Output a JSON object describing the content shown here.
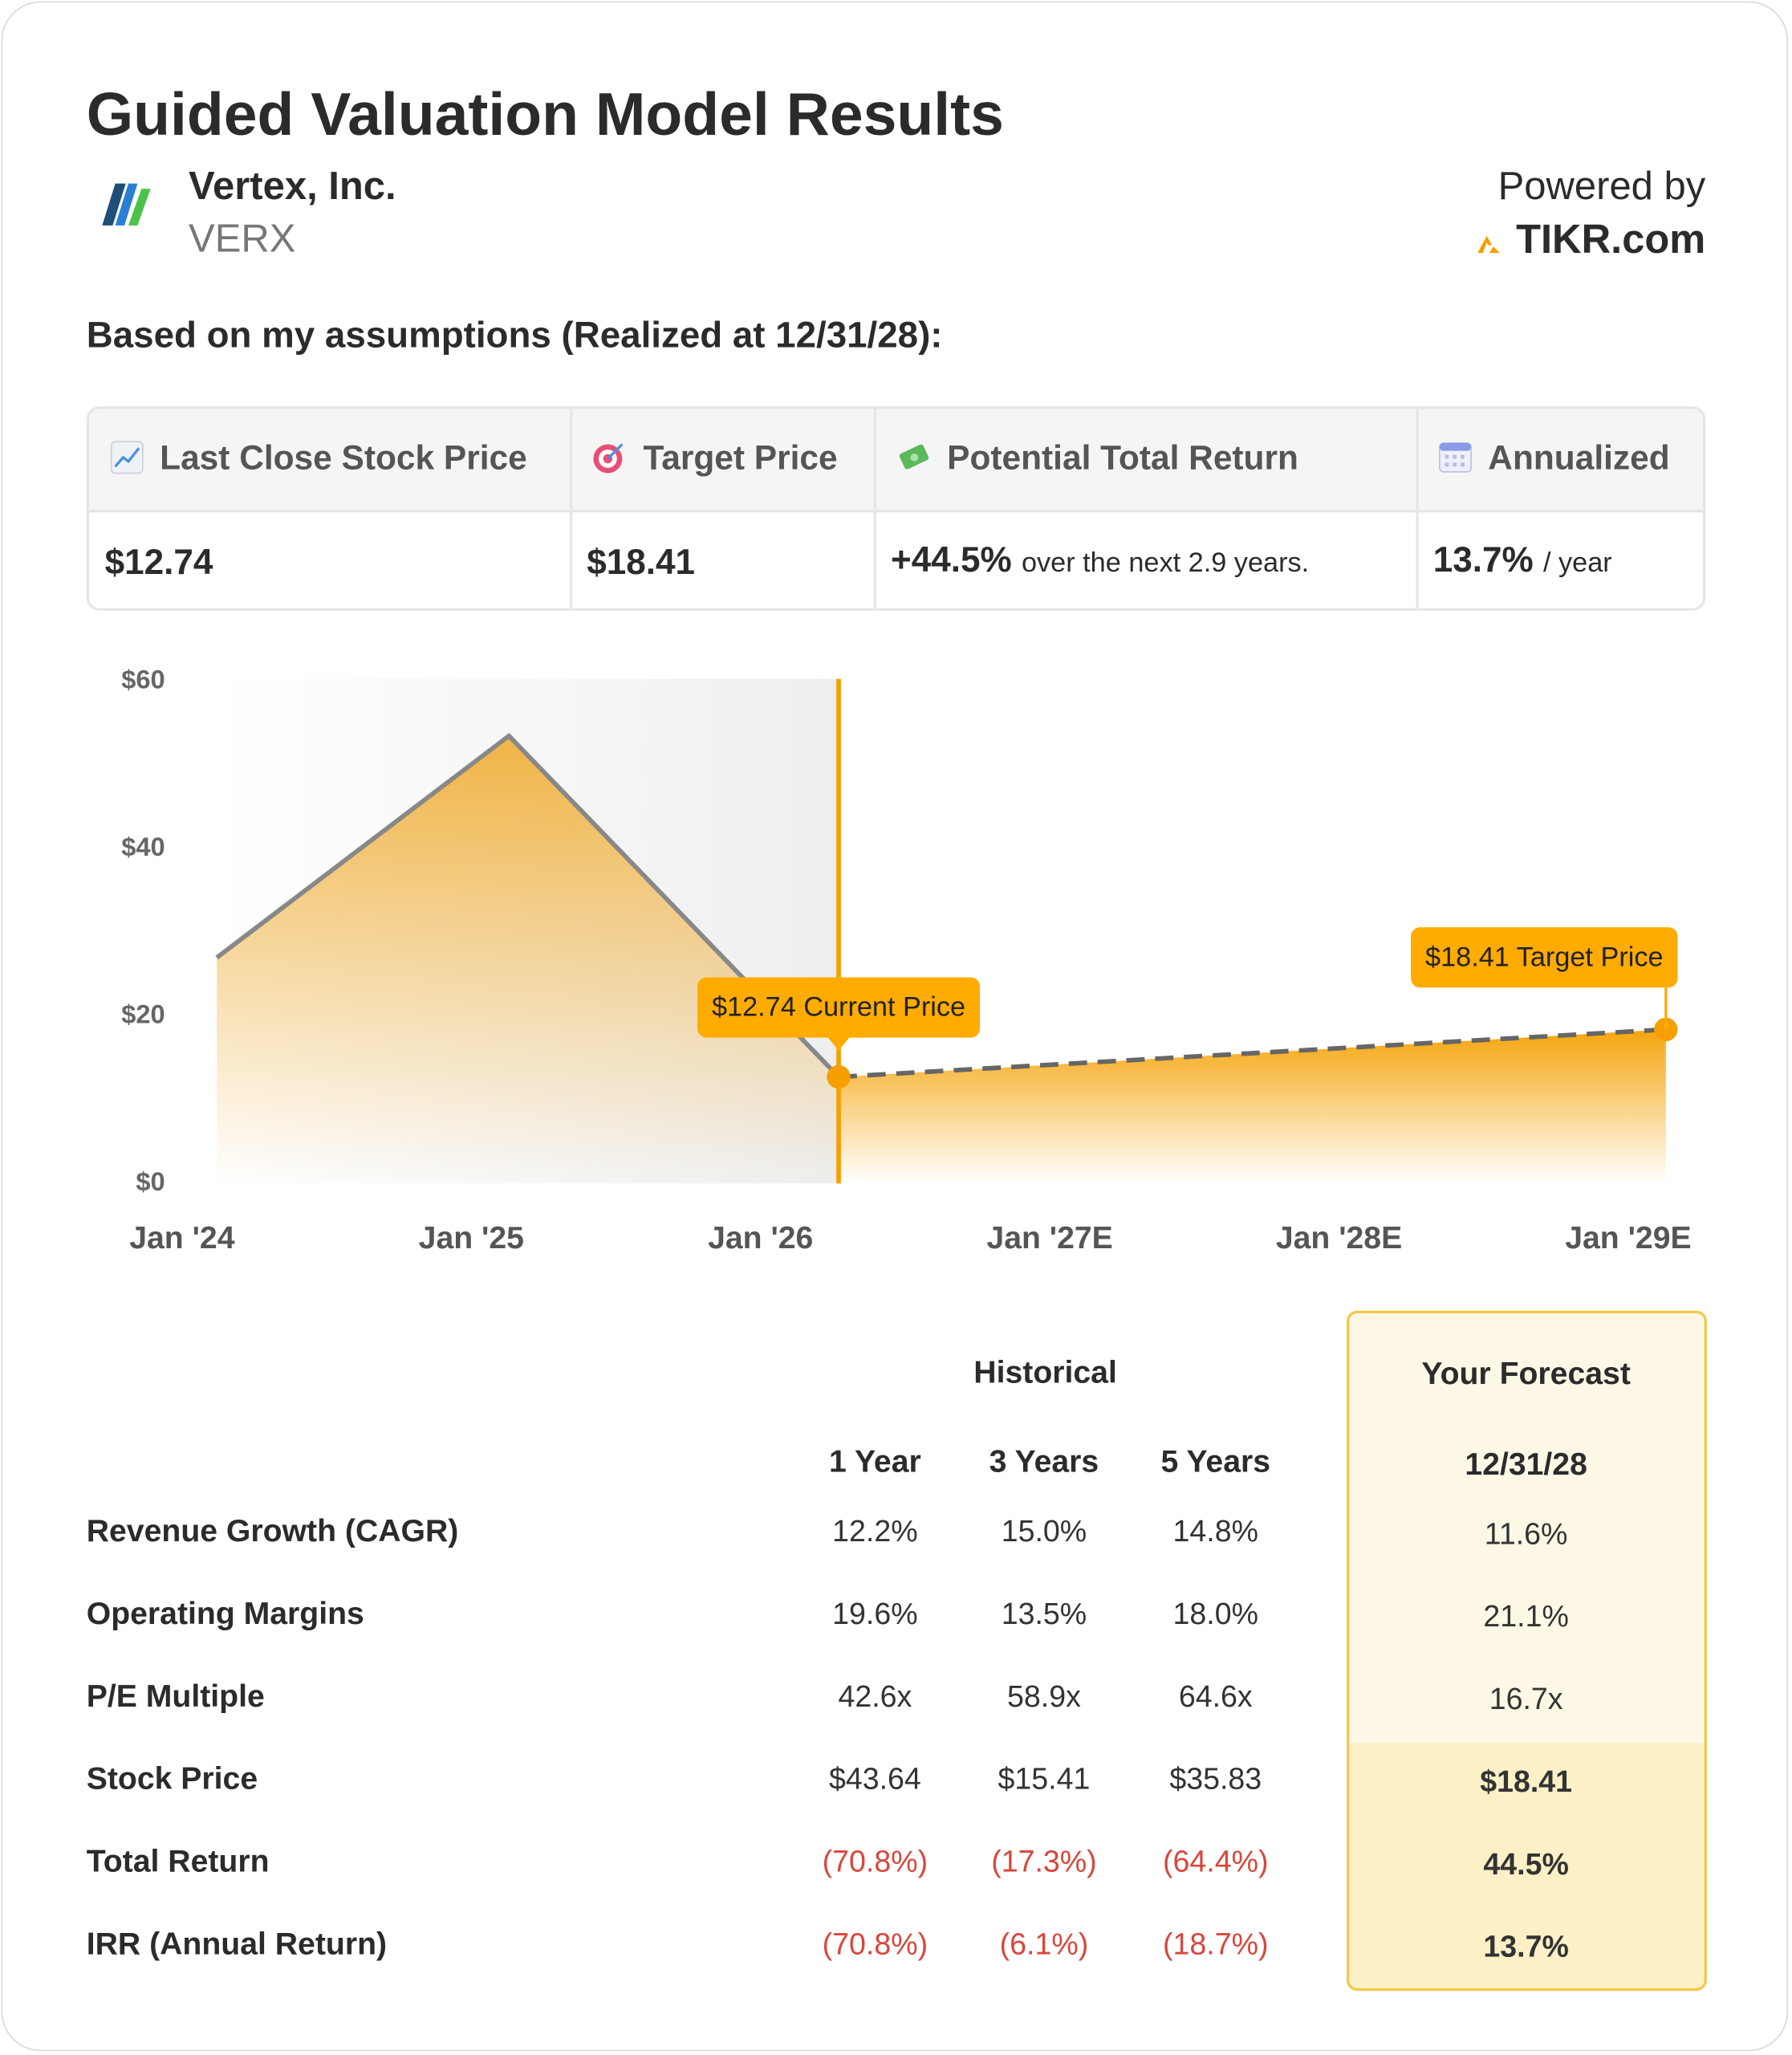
{
  "header": {
    "title": "Guided Valuation Model Results",
    "company": "Vertex, Inc.",
    "ticker": "VERX",
    "powered_by": "Powered by",
    "brand": "TIKR.com"
  },
  "subtitle": "Based on my assumptions (Realized at 12/31/28):",
  "summary": {
    "columns": [
      {
        "label": "Last Close Stock Price",
        "value": "$12.74"
      },
      {
        "label": "Target Price",
        "value": "$18.41"
      },
      {
        "label": "Potential Total Return",
        "value": "+44.5%",
        "note": "over the next 2.9 years."
      },
      {
        "label": "Annualized",
        "value": "13.7%",
        "note": "/ year"
      }
    ]
  },
  "chart_data": {
    "type": "line",
    "series": [
      {
        "color": "#f0b03c",
        "x": [
          0.12,
          1.13,
          2.27
        ],
        "values": [
          27,
          53.5,
          12.74
        ]
      },
      {
        "color": "#f5a000",
        "x": [
          2.27,
          5.13
        ],
        "values": [
          12.74,
          18.41
        ]
      }
    ],
    "annotations": [
      "$12.74 Current Price",
      "$18.41 Target Price"
    ],
    "xlim": [
      0,
      5
    ],
    "xticks": [
      {
        "value": 0,
        "label": "Jan '24"
      },
      {
        "value": 1,
        "label": "Jan '25"
      },
      {
        "value": 2,
        "label": "Jan '26"
      },
      {
        "value": 3,
        "label": "Jan '27E"
      },
      {
        "value": 4,
        "label": "Jan '28E"
      },
      {
        "value": 5,
        "label": "Jan '29E"
      }
    ],
    "ylim": [
      0,
      60
    ],
    "yticks": [
      {
        "value": 0,
        "label": "$0"
      },
      {
        "value": 20,
        "label": "$20"
      },
      {
        "value": 40,
        "label": "$40"
      },
      {
        "value": 60,
        "label": "$60"
      }
    ]
  },
  "table": {
    "group_header": "Historical",
    "forecast_header": "Your Forecast",
    "columns": [
      "1 Year",
      "3 Years",
      "5 Years",
      "12/31/28"
    ],
    "rows": [
      {
        "label": "Revenue Growth (CAGR)",
        "values": [
          "12.2%",
          "15.0%",
          "14.8%",
          "11.6%"
        ]
      },
      {
        "label": "Operating Margins",
        "values": [
          "19.6%",
          "13.5%",
          "18.0%",
          "21.1%"
        ]
      },
      {
        "label": "P/E Multiple",
        "values": [
          "42.6x",
          "58.9x",
          "64.6x",
          "16.7x"
        ]
      },
      {
        "label": "Stock Price",
        "values": [
          "$43.64",
          "$15.41",
          "$35.83",
          "$18.41"
        ]
      },
      {
        "label": "Total Return",
        "values": [
          "(70.8%)",
          "(17.3%)",
          "(64.4%)",
          "44.5%"
        ]
      },
      {
        "label": "IRR (Annual Return)",
        "values": [
          "(70.8%)",
          "(6.1%)",
          "(18.7%)",
          "13.7%"
        ]
      }
    ]
  }
}
